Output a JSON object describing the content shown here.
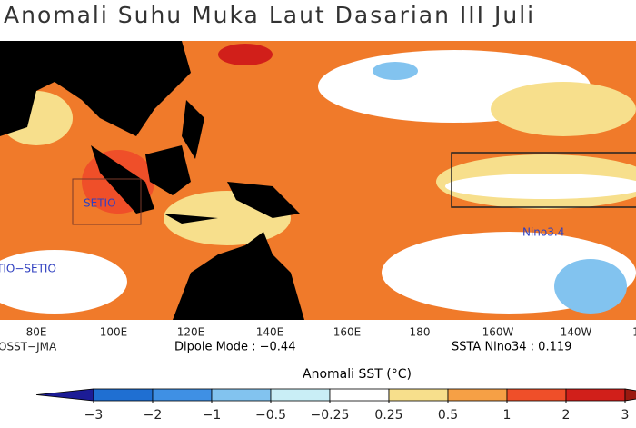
{
  "title": "Anomali Suhu Muka Laut Dasarian III Juli",
  "map": {
    "regions": [
      "SETIO",
      "Nino3.4",
      "TIO−SETIO"
    ],
    "longitudes": [
      "80E",
      "100E",
      "120E",
      "140E",
      "160E",
      "180",
      "160W",
      "140W",
      "1"
    ]
  },
  "footer": {
    "source": "OSST−JMA",
    "dipole": "Dipole Mode : −0.44",
    "nino": "SSTA Nino34 : 0.119"
  },
  "colorbar": {
    "title": "Anomali SST (°C)",
    "colors": [
      "#1c1c96",
      "#1f6fd2",
      "#3f90e4",
      "#82c3ef",
      "#c9eef6",
      "#ffffff",
      "#f7df8c",
      "#f6a045",
      "#ef4f29",
      "#d11f1a",
      "#9a1a10"
    ],
    "ticks": [
      {
        "value": -3,
        "label": "−3"
      },
      {
        "value": -2,
        "label": "−2"
      },
      {
        "value": -1,
        "label": "−1"
      },
      {
        "value": -0.5,
        "label": "−0.5"
      },
      {
        "value": -0.25,
        "label": "−0.25"
      },
      0.25,
      0.5,
      1,
      2,
      3
    ]
  }
}
